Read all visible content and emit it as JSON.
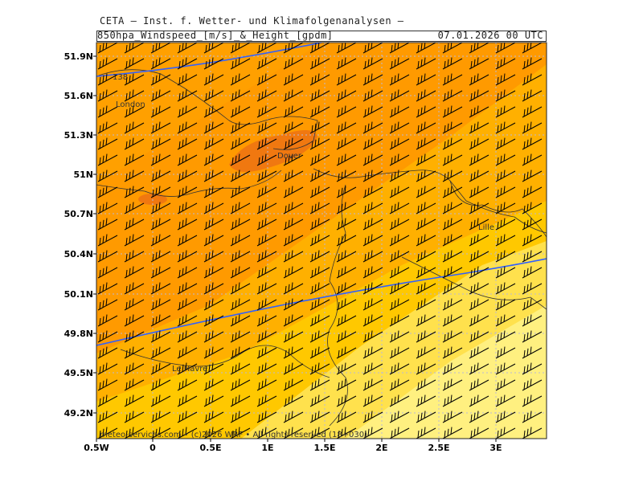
{
  "header": {
    "title": "CETA – Inst. f. Wetter- und Klimafolgenanalysen –",
    "parameter": "850hpa_Windspeed_[m/s]_&_Height_[gpdm]",
    "valid_time": "07.01.2026 00 UTC"
  },
  "axes": {
    "lat_labels": [
      "51.9N",
      "51.6N",
      "51.3N",
      "51N",
      "50.7N",
      "50.4N",
      "50.1N",
      "49.8N",
      "49.5N",
      "49.2N"
    ],
    "lon_labels": [
      "0.5W",
      "0",
      "0.5E",
      "1E",
      "1.5E",
      "2E",
      "2.5E",
      "3E"
    ]
  },
  "cities": [
    {
      "name": "London"
    },
    {
      "name": "Dover"
    },
    {
      "name": "Lille"
    },
    {
      "name": "Le Havre"
    }
  ],
  "contour_label": "138",
  "copyright": "meteo-services.com • (c)2026 WRF • All rights reserved (18+030)",
  "colors": {
    "band_dark_orange": "#f07810",
    "band_orange": "#ff9a00",
    "band_orange_light": "#ffb000",
    "band_yellow_orange": "#ffc800",
    "band_yellow": "#ffe14d",
    "band_pale_yellow": "#fff080",
    "height_contour": "#3060ff",
    "coastline": "#000000"
  }
}
